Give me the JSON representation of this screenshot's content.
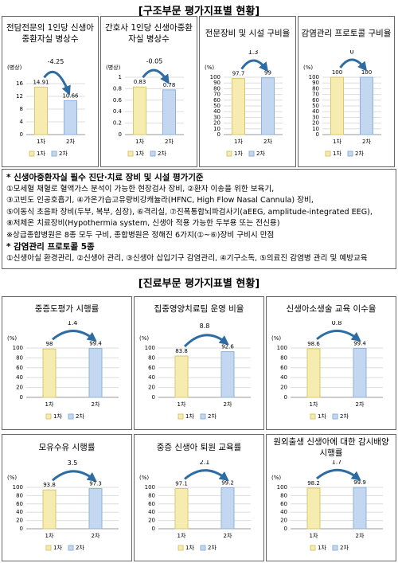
{
  "sections": [
    {
      "title": "[구조부문 평가지표별 현황]"
    },
    {
      "title": "[진료부문 평가지표별 현황]"
    }
  ],
  "notes": {
    "lines": [
      "* 신생아중환자실 필수 진단·치료 장비 및 시설 평가기준",
      "①모세혈 채혈로 혈액가스 분석이 가능한 현장검사 장비, ②환자 이송을 위한 보육기,",
      "③고빈도 인공호흡기, ④가온가습고유량비강캐뉼라(HFNC, High Flow Nasal Cannula) 장비,",
      "⑤이동식 초음파 장비(두부, 복부, 심장), ⑥격리실, ⑦진폭통합뇌파검사기(aEEG, amplitude-integrated EEG),",
      "⑧저체온 치료장비(Hypothermia system, 신생아 적용 가능한 두부용 또는 전신용)",
      "※상급종합병원은 8종 모두 구비, 종합병원은 정해진 6가지(①~⑥)장비 구비시 만점",
      "* 감염관리 프로토콜 5종",
      "①신생아실 환경관리, ②신생아 관리, ③신생아 삽입기구 감염관리, ④기구소독, ⑤의료진 감염병 관리 및 예방교육"
    ]
  },
  "chart_data": [
    {
      "type": "bar",
      "title": "전담전문의 1인당 신생아중환자실 병상수",
      "unit": "(병상)",
      "categories": [
        "1차",
        "2차"
      ],
      "values": [
        14.91,
        10.66
      ],
      "change": "-4.25",
      "colors": [
        "#f6ecb0",
        "#c3d8f0"
      ],
      "legend": [
        "1차",
        "2차"
      ],
      "ylim": [
        0,
        18
      ],
      "yticks": [
        0,
        4,
        8,
        12,
        16
      ],
      "grid": true
    },
    {
      "type": "bar",
      "title": "간호사 1인당 신생아중환자실 병상수",
      "unit": "(병상)",
      "categories": [
        "1차",
        "2차"
      ],
      "values": [
        0.83,
        0.78
      ],
      "change": "-0.05",
      "colors": [
        "#f6ecb0",
        "#c3d8f0"
      ],
      "legend": [
        "1차",
        "2차"
      ],
      "ylim": [
        0,
        1
      ],
      "yticks": [
        0,
        0.2,
        0.4,
        0.6,
        0.8,
        1
      ],
      "grid": true
    },
    {
      "type": "bar",
      "title": "전문장비 및 시설 구비율",
      "unit": "(%)",
      "categories": [
        "1차",
        "2차"
      ],
      "values": [
        97.7,
        99
      ],
      "change": "1.3",
      "colors": [
        "#f6ecb0",
        "#c3d8f0"
      ],
      "legend": [
        "1차",
        "2차"
      ],
      "ylim": [
        0,
        100
      ],
      "yticks": [
        0,
        10,
        20,
        30,
        40,
        50,
        60,
        70,
        80,
        90,
        100
      ],
      "grid": true
    },
    {
      "type": "bar",
      "title": "감염관리 프로토콜 구비율",
      "unit": "(%)",
      "categories": [
        "1차",
        "2차"
      ],
      "values": [
        100,
        100
      ],
      "change": "0",
      "colors": [
        "#f6ecb0",
        "#c3d8f0"
      ],
      "legend": [
        "1차",
        "2차"
      ],
      "ylim": [
        0,
        100
      ],
      "yticks": [
        0,
        10,
        20,
        30,
        40,
        50,
        60,
        70,
        80,
        90,
        100
      ],
      "grid": true
    },
    {
      "type": "bar",
      "title": "중증도평가 시행률",
      "unit": "(%)",
      "categories": [
        "1차",
        "2차"
      ],
      "values": [
        98,
        99.4
      ],
      "change": "1.4",
      "colors": [
        "#f6ecb0",
        "#c3d8f0"
      ],
      "legend": [
        "1차",
        "2차"
      ],
      "ylim": [
        0,
        100
      ],
      "yticks": [
        0,
        20,
        40,
        60,
        80,
        100
      ],
      "grid": true
    },
    {
      "type": "bar",
      "title": "집중영양치료팀 운영 비율",
      "unit": "(%)",
      "categories": [
        "1차",
        "2차"
      ],
      "values": [
        83.8,
        92.6
      ],
      "change": "8.8",
      "colors": [
        "#f6ecb0",
        "#c3d8f0"
      ],
      "legend": [
        "1차",
        "2차"
      ],
      "ylim": [
        0,
        100
      ],
      "yticks": [
        0,
        20,
        40,
        60,
        80,
        100
      ],
      "grid": true
    },
    {
      "type": "bar",
      "title": "신생아소생술 교육 이수율",
      "unit": "(%)",
      "categories": [
        "1차",
        "2차"
      ],
      "values": [
        98.6,
        99.4
      ],
      "change": "0.8",
      "colors": [
        "#f6ecb0",
        "#c3d8f0"
      ],
      "legend": [
        "1차",
        "2차"
      ],
      "ylim": [
        0,
        100
      ],
      "yticks": [
        0,
        20,
        40,
        60,
        80,
        100
      ],
      "grid": true
    },
    {
      "type": "bar",
      "title": "모유수유 시행률",
      "unit": "(%)",
      "categories": [
        "1차",
        "2차"
      ],
      "values": [
        93.8,
        97.3
      ],
      "change": "3.5",
      "colors": [
        "#f6ecb0",
        "#c3d8f0"
      ],
      "legend": [
        "1차",
        "2차"
      ],
      "ylim": [
        0,
        100
      ],
      "yticks": [
        0,
        20,
        40,
        60,
        80,
        100
      ],
      "grid": true
    },
    {
      "type": "bar",
      "title": "중증 신생아 퇴원 교육률",
      "unit": "(%)",
      "categories": [
        "1차",
        "2차"
      ],
      "values": [
        97.1,
        99.2
      ],
      "change": "2.1",
      "colors": [
        "#f6ecb0",
        "#c3d8f0"
      ],
      "legend": [
        "1차",
        "2차"
      ],
      "ylim": [
        0,
        100
      ],
      "yticks": [
        0,
        20,
        40,
        60,
        80,
        100
      ],
      "grid": true
    },
    {
      "type": "bar",
      "title": "원외출생 신생아에 대한 감시배양 시행률",
      "unit": "(%)",
      "categories": [
        "1차",
        "2차"
      ],
      "values": [
        98.2,
        99.9
      ],
      "change": "1.7",
      "colors": [
        "#f6ecb0",
        "#c3d8f0"
      ],
      "legend": [
        "1차",
        "2차"
      ],
      "ylim": [
        0,
        100
      ],
      "yticks": [
        0,
        20,
        40,
        60,
        80,
        100
      ],
      "grid": true
    }
  ]
}
